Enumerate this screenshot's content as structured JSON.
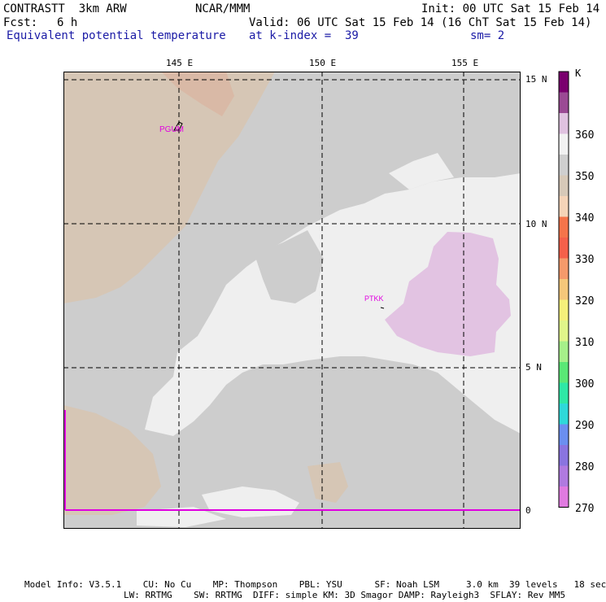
{
  "header": {
    "model": "CONTRASTT  3km ARW",
    "org": "NCAR/MMM",
    "init": "Init: 00 UTC Sat 15 Feb 14",
    "fcst_label": "Fcst:",
    "fcst_value": "6 h",
    "valid": "Valid: 06 UTC Sat 15 Feb 14 (16 ChT Sat 15 Feb 14)",
    "field": "Equivalent potential temperature",
    "level": "at k-index =  39",
    "smooth": "sm= 2"
  },
  "map": {
    "lon_labels": [
      "145 E",
      "150 E",
      "155 E"
    ],
    "lat_labels": [
      "15 N",
      "10 N",
      "5 N",
      "0"
    ],
    "stations": [
      "PGUM",
      "PTKK"
    ]
  },
  "colorbar": {
    "unit": "K",
    "tick_labels": [
      "360",
      "350",
      "340",
      "330",
      "320",
      "310",
      "300",
      "290",
      "280",
      "270"
    ],
    "colors": [
      "#7a006e",
      "#9b4a94",
      "#e0c2e0",
      "#f2f2f2",
      "#cfcfcf",
      "#d7c9b8",
      "#f5d4b8",
      "#f5744a",
      "#f5604a",
      "#f59a6b",
      "#f5c77a",
      "#f5f07a",
      "#e0f58a",
      "#a6f08a",
      "#5ae876",
      "#2ee8a6",
      "#2ed9d9",
      "#6b8ff0",
      "#8a74e0",
      "#b07ae0",
      "#e07ae0"
    ]
  },
  "footer": {
    "line1": "Model Info: V3.5.1    CU: No Cu    MP: Thompson    PBL: YSU      SF: Noah LSM     3.0 km  39 levels   18 sec",
    "line2": "LW: RRTMG    SW: RRTMG  DIFF: simple KM: 3D Smagor DAMP: Rayleigh3  SFLAY: Rev MM5"
  }
}
